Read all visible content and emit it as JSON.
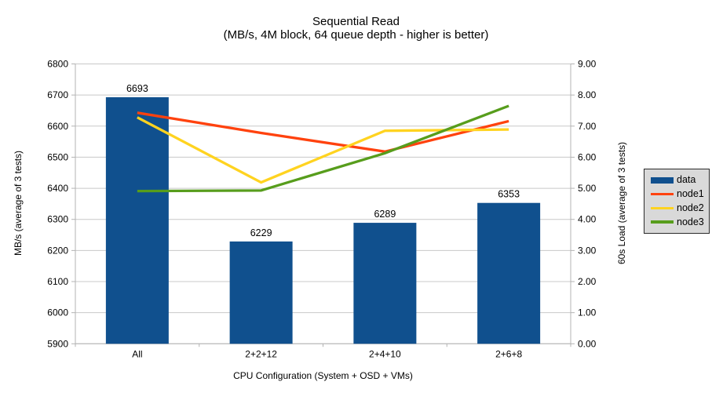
{
  "chart_data": {
    "type": "bar+line",
    "title": "Sequential Read",
    "subtitle": "(MB/s, 4M block, 64 queue depth - higher is better)",
    "xlabel": "CPU Configuration (System + OSD + VMs)",
    "y1label": "MB/s (average of 3 tests)",
    "y2label": "60s Load (average of 3 tests)",
    "categories": [
      "All",
      "2+2+12",
      "2+4+10",
      "2+6+8"
    ],
    "bar_series": {
      "name": "data",
      "axis": "left",
      "color": "#10508e",
      "values": [
        6693,
        6229,
        6289,
        6353
      ],
      "labels": [
        "6693",
        "6229",
        "6289",
        "6353"
      ]
    },
    "line_series": [
      {
        "name": "node1",
        "axis": "right",
        "color": "#ff420e",
        "values": [
          7.43,
          6.78,
          6.18,
          7.16
        ]
      },
      {
        "name": "node2",
        "axis": "right",
        "color": "#ffd320",
        "values": [
          7.28,
          5.19,
          6.85,
          6.89
        ]
      },
      {
        "name": "node3",
        "axis": "right",
        "color": "#579d1c",
        "values": [
          4.91,
          4.93,
          6.13,
          7.65
        ]
      }
    ],
    "y1lim": [
      5900,
      6800
    ],
    "y1step": 100,
    "y2lim": [
      0,
      9
    ],
    "y2step": 1,
    "y2tick_decimals": 2,
    "grid": true,
    "legend_position": "right",
    "style": {
      "grid_color": "#c8c8c8",
      "axis_color": "#b3b3b3",
      "text_color": "#000000",
      "legend_bg": "#d9d9d9",
      "legend_border": "#2b2b2b",
      "background": "#ffffff"
    }
  }
}
